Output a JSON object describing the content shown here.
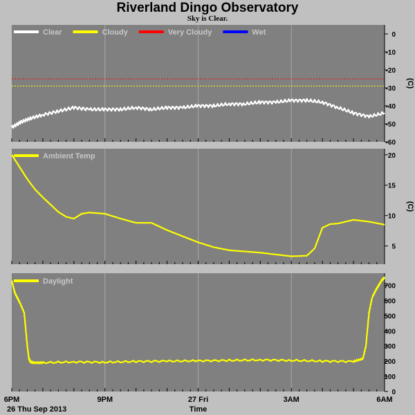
{
  "header": {
    "title": "Riverland Dingo Observatory",
    "subtitle": "Sky is Clear."
  },
  "colors": {
    "background": "#c0c0c0",
    "panel": "#808080",
    "grid": "#a8a8a8",
    "clear": "#ffffff",
    "cloudy": "#ffff00",
    "very_cloudy": "#ff0000",
    "wet": "#0000ff",
    "legend_text": "#c8c8c8"
  },
  "chart_data": [
    {
      "type": "line",
      "ylabel": "(C)",
      "ylim": [
        -60,
        5
      ],
      "yticks": [
        0,
        -10,
        -20,
        -30,
        -40,
        -50,
        -60
      ],
      "legend_position": "top-left",
      "legend": [
        {
          "name": "Clear",
          "color": "#ffffff"
        },
        {
          "name": "Cloudy",
          "color": "#ffff00"
        },
        {
          "name": "Very Cloudy",
          "color": "#ff0000"
        },
        {
          "name": "Wet",
          "color": "#0000ff"
        }
      ],
      "thresholds": [
        {
          "value": -25,
          "color": "#ff0000"
        },
        {
          "value": -29,
          "color": "#ffff00"
        }
      ],
      "series": [
        {
          "name": "Clear",
          "color": "#ffffff",
          "x": [
            0,
            0.3,
            0.6,
            1.0,
            1.5,
            2.0,
            2.5,
            3.0,
            3.5,
            4.0,
            4.5,
            5.0,
            5.5,
            6.0,
            6.5,
            7.0,
            7.5,
            8.0,
            8.5,
            9.0,
            9.5,
            10.0,
            10.5,
            11.0,
            11.5,
            12.0
          ],
          "y": [
            -52,
            -49,
            -47,
            -45,
            -43,
            -41,
            -42,
            -42,
            -42,
            -41,
            -42,
            -41,
            -41,
            -40,
            -40,
            -39,
            -39,
            -38,
            -38,
            -37,
            -37,
            -38,
            -41,
            -44,
            -46,
            -44
          ]
        }
      ]
    },
    {
      "type": "line",
      "ylabel": "(C)",
      "ylim": [
        2,
        21
      ],
      "yticks": [
        20,
        15,
        10,
        5
      ],
      "legend_position": "top-left",
      "legend": [
        {
          "name": "Ambient Temp",
          "color": "#ffff00"
        }
      ],
      "series": [
        {
          "name": "Ambient Temp",
          "color": "#ffff00",
          "x": [
            0,
            0.25,
            0.5,
            0.75,
            1.0,
            1.25,
            1.5,
            1.75,
            2.0,
            2.25,
            2.5,
            3.0,
            3.5,
            4.0,
            4.5,
            5.0,
            5.5,
            6.0,
            6.5,
            7.0,
            7.5,
            8.0,
            8.5,
            9.0,
            9.5,
            9.75,
            10.0,
            10.25,
            10.5,
            11.0,
            11.5,
            12.0
          ],
          "y": [
            20,
            18,
            16,
            14.3,
            13,
            11.8,
            10.6,
            9.8,
            9.5,
            10.3,
            10.5,
            10.3,
            9.5,
            8.8,
            8.8,
            7.6,
            6.6,
            5.6,
            4.8,
            4.3,
            4.1,
            3.9,
            3.6,
            3.3,
            3.4,
            4.6,
            8.0,
            8.6,
            8.7,
            9.3,
            9.0,
            8.5
          ]
        }
      ]
    },
    {
      "type": "line",
      "ylim": [
        0,
        780
      ],
      "yticks": [
        700,
        600,
        500,
        400,
        300,
        200,
        100,
        0
      ],
      "legend_position": "top-left",
      "legend": [
        {
          "name": "Daylight",
          "color": "#ffff00"
        }
      ],
      "xticks": [
        {
          "value": 0,
          "label": "6PM"
        },
        {
          "value": 3,
          "label": "9PM"
        },
        {
          "value": 6,
          "label": "27 Fri"
        },
        {
          "value": 9,
          "label": "3AM"
        },
        {
          "value": 12,
          "label": "6AM"
        }
      ],
      "date_label": "26 Thu Sep 2013",
      "xlabel": "Time",
      "series": [
        {
          "name": "Daylight",
          "color": "#ffff00",
          "x": [
            0,
            0.1,
            0.25,
            0.4,
            0.5,
            0.55,
            0.6,
            0.7,
            1,
            2,
            3,
            4,
            5,
            6,
            7,
            8,
            9,
            10,
            11,
            11.3,
            11.4,
            11.5,
            11.6,
            11.75,
            11.9,
            12.0
          ],
          "y": [
            730,
            650,
            590,
            520,
            300,
            220,
            195,
            190,
            190,
            195,
            193,
            198,
            200,
            202,
            205,
            208,
            205,
            200,
            198,
            215,
            300,
            520,
            620,
            680,
            730,
            750
          ]
        }
      ]
    }
  ]
}
